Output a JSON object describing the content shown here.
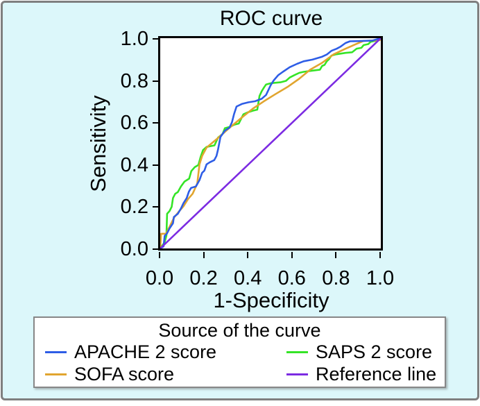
{
  "figure": {
    "background_color": "#dcf7fa",
    "border_color": "#7f7f7f",
    "plot_background": "#ffffff",
    "axis_color": "#000000"
  },
  "chart": {
    "title": "ROC curve",
    "x_axis_label": "1-Specificity",
    "y_axis_label": "Sensitivity"
  },
  "chart_data": {
    "type": "line",
    "title": "ROC curve",
    "xlabel": "1-Specificity",
    "ylabel": "Sensitivity",
    "xlim": [
      0,
      1
    ],
    "ylim": [
      0,
      1
    ],
    "x_tick_labels": [
      "0.0",
      "0.2",
      "0.4",
      "0.6",
      "0.8",
      "1.0"
    ],
    "y_tick_labels": [
      "0.0",
      "0.2",
      "0.4",
      "0.6",
      "0.8",
      "1.0"
    ],
    "grid": false,
    "legend_position": "bottom",
    "series": [
      {
        "name": "SAPS 2 score",
        "color": "#34e426",
        "points": [
          [
            0,
            0
          ],
          [
            0.02,
            0.03
          ],
          [
            0.028,
            0.06
          ],
          [
            0.031,
            0.165
          ],
          [
            0.042,
            0.178
          ],
          [
            0.052,
            0.198
          ],
          [
            0.058,
            0.24
          ],
          [
            0.068,
            0.26
          ],
          [
            0.08,
            0.268
          ],
          [
            0.094,
            0.295
          ],
          [
            0.11,
            0.318
          ],
          [
            0.131,
            0.332
          ],
          [
            0.141,
            0.368
          ],
          [
            0.157,
            0.387
          ],
          [
            0.173,
            0.397
          ],
          [
            0.183,
            0.435
          ],
          [
            0.194,
            0.468
          ],
          [
            0.21,
            0.483
          ],
          [
            0.246,
            0.49
          ],
          [
            0.262,
            0.527
          ],
          [
            0.283,
            0.545
          ],
          [
            0.293,
            0.572
          ],
          [
            0.314,
            0.578
          ],
          [
            0.335,
            0.588
          ],
          [
            0.356,
            0.594
          ],
          [
            0.377,
            0.638
          ],
          [
            0.398,
            0.648
          ],
          [
            0.42,
            0.655
          ],
          [
            0.44,
            0.66
          ],
          [
            0.45,
            0.725
          ],
          [
            0.46,
            0.748
          ],
          [
            0.47,
            0.765
          ],
          [
            0.48,
            0.78
          ],
          [
            0.503,
            0.786
          ],
          [
            0.545,
            0.79
          ],
          [
            0.57,
            0.797
          ],
          [
            0.587,
            0.813
          ],
          [
            0.608,
            0.824
          ],
          [
            0.63,
            0.835
          ],
          [
            0.65,
            0.84
          ],
          [
            0.692,
            0.846
          ],
          [
            0.724,
            0.85
          ],
          [
            0.734,
            0.868
          ],
          [
            0.745,
            0.873
          ],
          [
            0.755,
            0.89
          ],
          [
            0.765,
            0.9
          ],
          [
            0.776,
            0.917
          ],
          [
            0.797,
            0.923
          ],
          [
            0.84,
            0.93
          ],
          [
            0.87,
            0.933
          ],
          [
            0.89,
            0.95
          ],
          [
            0.912,
            0.954
          ],
          [
            0.922,
            0.967
          ],
          [
            0.943,
            0.972
          ],
          [
            0.954,
            0.983
          ],
          [
            0.975,
            0.987
          ],
          [
            1,
            1
          ]
        ]
      },
      {
        "name": "SOFA score",
        "color": "#e1a52f",
        "points": [
          [
            0,
            0
          ],
          [
            0.004,
            0.07
          ],
          [
            0.026,
            0.07
          ],
          [
            0.042,
            0.103
          ],
          [
            0.063,
            0.147
          ],
          [
            0.084,
            0.175
          ],
          [
            0.105,
            0.2
          ],
          [
            0.126,
            0.235
          ],
          [
            0.147,
            0.26
          ],
          [
            0.162,
            0.295
          ],
          [
            0.168,
            0.31
          ],
          [
            0.178,
            0.4
          ],
          [
            0.19,
            0.44
          ],
          [
            0.205,
            0.47
          ],
          [
            0.21,
            0.48
          ],
          [
            0.262,
            0.525
          ],
          [
            0.314,
            0.574
          ],
          [
            0.367,
            0.62
          ],
          [
            0.42,
            0.665
          ],
          [
            0.47,
            0.7
          ],
          [
            0.524,
            0.735
          ],
          [
            0.577,
            0.768
          ],
          [
            0.63,
            0.807
          ],
          [
            0.68,
            0.85
          ],
          [
            0.734,
            0.883
          ],
          [
            0.786,
            0.923
          ],
          [
            0.84,
            0.95
          ],
          [
            0.89,
            0.973
          ],
          [
            0.922,
            0.987
          ],
          [
            0.995,
            0.99
          ],
          [
            1,
            1
          ]
        ]
      },
      {
        "name": "APACHE 2 score",
        "color": "#2e5de6",
        "points": [
          [
            0,
            0
          ],
          [
            0.015,
            0.01
          ],
          [
            0.02,
            0.06
          ],
          [
            0.03,
            0.07
          ],
          [
            0.042,
            0.095
          ],
          [
            0.058,
            0.12
          ],
          [
            0.062,
            0.15
          ],
          [
            0.08,
            0.165
          ],
          [
            0.094,
            0.19
          ],
          [
            0.105,
            0.215
          ],
          [
            0.12,
            0.24
          ],
          [
            0.13,
            0.27
          ],
          [
            0.14,
            0.288
          ],
          [
            0.162,
            0.295
          ],
          [
            0.178,
            0.325
          ],
          [
            0.19,
            0.36
          ],
          [
            0.2,
            0.37
          ],
          [
            0.21,
            0.4
          ],
          [
            0.225,
            0.41
          ],
          [
            0.245,
            0.42
          ],
          [
            0.255,
            0.44
          ],
          [
            0.262,
            0.47
          ],
          [
            0.273,
            0.53
          ],
          [
            0.293,
            0.56
          ],
          [
            0.314,
            0.575
          ],
          [
            0.325,
            0.6
          ],
          [
            0.335,
            0.64
          ],
          [
            0.346,
            0.675
          ],
          [
            0.37,
            0.687
          ],
          [
            0.4,
            0.695
          ],
          [
            0.43,
            0.7
          ],
          [
            0.46,
            0.712
          ],
          [
            0.48,
            0.73
          ],
          [
            0.5,
            0.775
          ],
          [
            0.515,
            0.8
          ],
          [
            0.535,
            0.824
          ],
          [
            0.556,
            0.84
          ],
          [
            0.587,
            0.862
          ],
          [
            0.62,
            0.878
          ],
          [
            0.65,
            0.89
          ],
          [
            0.69,
            0.898
          ],
          [
            0.734,
            0.912
          ],
          [
            0.755,
            0.922
          ],
          [
            0.776,
            0.94
          ],
          [
            0.8,
            0.95
          ],
          [
            0.818,
            0.96
          ],
          [
            0.84,
            0.977
          ],
          [
            0.86,
            0.985
          ],
          [
            0.96,
            0.988
          ],
          [
            1,
            1
          ]
        ]
      },
      {
        "name": "Reference line",
        "color": "#7c2be2",
        "points": [
          [
            0,
            0
          ],
          [
            1,
            1
          ]
        ]
      }
    ]
  },
  "legend": {
    "title": "Source of the curve",
    "items": [
      {
        "label": "APACHE 2 score",
        "color": "#2e5de6"
      },
      {
        "label": "SAPS 2 score",
        "color": "#34e426"
      },
      {
        "label": "SOFA score",
        "color": "#e1a52f"
      },
      {
        "label": "Reference line",
        "color": "#7c2be2"
      }
    ]
  }
}
